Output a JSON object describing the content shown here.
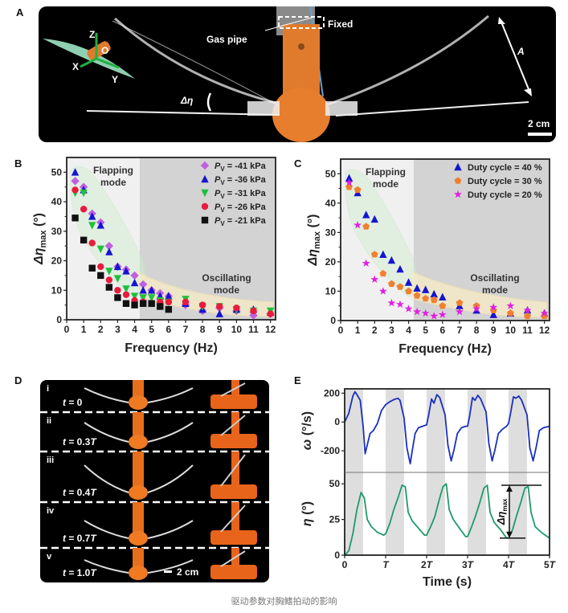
{
  "caption": "驱动参数对胸鳍拍动的影响",
  "panels": {
    "A": {
      "label": "A",
      "gas_pipe": "Gas pipe",
      "fixed": "Fixed",
      "amplitude": "A",
      "delta_eta": "Δη",
      "scale_bar": "2 cm",
      "axes": {
        "z": "Z",
        "x": "X",
        "y": "Y",
        "origin": "O"
      }
    },
    "B": {
      "label": "B"
    },
    "C": {
      "label": "C"
    },
    "D": {
      "label": "D",
      "scale_bar": "2 cm",
      "frames": [
        {
          "roman": "i",
          "time": "t = 0"
        },
        {
          "roman": "ii",
          "time": "t = 0.3T"
        },
        {
          "roman": "iii",
          "time": "t = 0.4T"
        },
        {
          "roman": "iv",
          "time": "t = 0.7T"
        },
        {
          "roman": "v",
          "time": "t = 1.0T"
        }
      ]
    },
    "E": {
      "label": "E"
    }
  },
  "chart_data": [
    {
      "id": "B",
      "type": "scatter",
      "xlabel": "Frequency (Hz)",
      "ylabel": "Δη_max (°)",
      "xlim": [
        0,
        12.3
      ],
      "ylim": [
        0,
        55
      ],
      "xticks": [
        0,
        1,
        2,
        3,
        4,
        5,
        6,
        7,
        8,
        9,
        10,
        11,
        12
      ],
      "yticks": [
        0,
        10,
        20,
        30,
        40,
        50
      ],
      "legend_position": "top-right",
      "regions": [
        {
          "label": "Flapping mode",
          "x_range": [
            0,
            4.3
          ],
          "color": "#f0f0f0"
        },
        {
          "label": "Oscillating mode",
          "x_range": [
            4.3,
            12.3
          ],
          "color": "#d3d3d3"
        }
      ],
      "annotations": [
        "Flapping mode",
        "Oscillating mode"
      ],
      "x": [
        0.5,
        1,
        1.5,
        2,
        2.5,
        3,
        3.5,
        4,
        4.5,
        5,
        5.5,
        6,
        7,
        8,
        9,
        10,
        11,
        12
      ],
      "series": [
        {
          "name": "Pv = -41 kPa",
          "marker": "diamond",
          "color": "#c060e0",
          "values": [
            47,
            45,
            36,
            33,
            25,
            18,
            17,
            15,
            12,
            10,
            9,
            8,
            5,
            3,
            4,
            3,
            1.5,
            2
          ]
        },
        {
          "name": "Pv = -36 kPa",
          "marker": "triangle-up",
          "color": "#1515d0",
          "values": [
            50,
            44,
            35,
            32,
            23,
            18,
            16.5,
            12.5,
            10,
            10,
            8,
            8,
            5.5,
            3.5,
            2,
            3.5,
            3.5,
            2.5
          ]
        },
        {
          "name": "Pv = -31 kPa",
          "marker": "triangle-down",
          "color": "#20c040",
          "values": [
            43,
            43,
            32,
            24,
            16.5,
            14,
            10.5,
            8,
            7.5,
            7.5,
            6.5,
            6,
            7,
            4.5,
            4.5,
            3.5,
            3,
            3
          ]
        },
        {
          "name": "Pv = -26 kPa",
          "marker": "circle",
          "color": "#e81c3c",
          "values": [
            44,
            37.5,
            26,
            18,
            13.5,
            10,
            8.5,
            6.5,
            6,
            5.5,
            6,
            6,
            6,
            5,
            4.5,
            4,
            3,
            2
          ]
        },
        {
          "name": "Pv = -21 kPa",
          "marker": "square",
          "color": "#111111",
          "values": [
            34.5,
            27,
            17.5,
            15,
            11,
            7.5,
            5.5,
            5,
            5.5,
            5.5,
            4.5,
            3.5,
            null,
            null,
            null,
            null,
            null,
            null
          ]
        }
      ]
    },
    {
      "id": "C",
      "type": "scatter",
      "xlabel": "Frequency (Hz)",
      "ylabel": "Δη_max (°)",
      "xlim": [
        0,
        12.3
      ],
      "ylim": [
        0,
        55
      ],
      "xticks": [
        0,
        1,
        2,
        3,
        4,
        5,
        6,
        7,
        8,
        9,
        10,
        11,
        12
      ],
      "yticks": [
        0,
        10,
        20,
        30,
        40,
        50
      ],
      "legend_position": "top-right",
      "regions": [
        {
          "label": "Flapping mode",
          "x_range": [
            0,
            4.3
          ],
          "color": "#f0f0f0"
        },
        {
          "label": "Oscillating mode",
          "x_range": [
            4.3,
            12.3
          ],
          "color": "#d3d3d3"
        }
      ],
      "annotations": [
        "Flapping mode",
        "Oscillating mode"
      ],
      "x": [
        0.5,
        1,
        1.5,
        2,
        2.5,
        3,
        3.5,
        4,
        4.5,
        5,
        5.5,
        6,
        7,
        8,
        9,
        10,
        11,
        12
      ],
      "series": [
        {
          "name": "Duty cycle = 40 %",
          "marker": "triangle-up",
          "color": "#1515d0",
          "values": [
            48.5,
            43.5,
            36,
            34.5,
            22.5,
            20.5,
            17.5,
            13,
            11,
            10.5,
            9,
            8,
            5,
            3.5,
            2,
            2.5,
            3.5,
            2.5
          ]
        },
        {
          "name": "Duty cycle = 30 %",
          "marker": "pentagon",
          "color": "#f08030",
          "values": [
            45.5,
            44.5,
            32,
            22.5,
            16,
            12.5,
            11.5,
            10,
            8.5,
            7.5,
            7,
            5,
            6,
            5,
            3.5,
            2.5,
            1.5,
            1.5
          ]
        },
        {
          "name": "Duty cycle = 20 %",
          "marker": "star",
          "color": "#e020e0",
          "values": [
            47,
            32.5,
            19.5,
            14,
            10,
            6,
            5.5,
            4,
            3,
            2.5,
            1.5,
            2,
            3,
            4,
            4.5,
            5,
            3.5,
            2.5
          ]
        }
      ]
    },
    {
      "id": "E",
      "type": "line",
      "xlabel": "Time (s)",
      "xticks": [
        "0",
        "T",
        "2T",
        "3T",
        "4T",
        "5T"
      ],
      "xlim": [
        0,
        5
      ],
      "shaded_bands_T": [
        [
          0,
          0.45
        ],
        [
          1,
          1.45
        ],
        [
          2,
          2.45
        ],
        [
          3,
          3.45
        ],
        [
          4,
          4.45
        ]
      ],
      "subplots": [
        {
          "ylabel": "ω (°/s)",
          "ylim": [
            -350,
            230
          ],
          "yticks": [
            -200,
            0,
            200
          ],
          "color": "#1a2fc0",
          "t": [
            0,
            0.1,
            0.2,
            0.25,
            0.3,
            0.38,
            0.45,
            0.5,
            0.55,
            0.62,
            0.7,
            0.8,
            0.9,
            1.0,
            1.1,
            1.2,
            1.3,
            1.35,
            1.45,
            1.52,
            1.6,
            1.65,
            1.72,
            1.8,
            1.9,
            2.0,
            2.05,
            2.12,
            2.18,
            2.25,
            2.32,
            2.45,
            2.52,
            2.6,
            2.67,
            2.75,
            2.85,
            2.95,
            3.0,
            3.05,
            3.12,
            3.18,
            3.25,
            3.32,
            3.45,
            3.52,
            3.6,
            3.67,
            3.75,
            3.85,
            3.95,
            4.0,
            4.05,
            4.12,
            4.18,
            4.25,
            4.32,
            4.45,
            4.52,
            4.6,
            4.67,
            4.75,
            4.85,
            5.0
          ],
          "values": [
            0,
            60,
            180,
            210,
            190,
            150,
            -30,
            -220,
            -160,
            -80,
            -60,
            -10,
            80,
            120,
            140,
            155,
            165,
            150,
            30,
            -180,
            -290,
            -200,
            -80,
            -40,
            -30,
            -20,
            50,
            160,
            130,
            190,
            170,
            50,
            -160,
            -270,
            -190,
            -80,
            -40,
            -30,
            -30,
            40,
            170,
            150,
            185,
            160,
            70,
            -150,
            -270,
            -190,
            -80,
            -50,
            -30,
            -10,
            60,
            175,
            165,
            180,
            150,
            50,
            -180,
            -270,
            -180,
            -60,
            -40,
            -30
          ]
        },
        {
          "ylabel": "η (°)",
          "ylim": [
            0,
            58
          ],
          "yticks": [
            0,
            25,
            50
          ],
          "color": "#1f9a6a",
          "t": [
            0,
            0.1,
            0.2,
            0.3,
            0.4,
            0.48,
            0.55,
            0.65,
            0.8,
            0.95,
            1.0,
            1.1,
            1.2,
            1.3,
            1.4,
            1.48,
            1.55,
            1.65,
            1.8,
            1.95,
            2.0,
            2.1,
            2.2,
            2.3,
            2.4,
            2.48,
            2.55,
            2.65,
            2.8,
            2.95,
            3.0,
            3.1,
            3.2,
            3.3,
            3.4,
            3.48,
            3.55,
            3.65,
            3.8,
            3.95,
            4.0,
            4.1,
            4.2,
            4.3,
            4.4,
            4.48,
            4.55,
            4.65,
            4.8,
            5.0
          ],
          "values": [
            0,
            3,
            15,
            32,
            44,
            40,
            25,
            20,
            16,
            14,
            15,
            22,
            32,
            40,
            49,
            48,
            30,
            24,
            19,
            14,
            14,
            20,
            27,
            38,
            48,
            50,
            32,
            25,
            19,
            13,
            13,
            20,
            28,
            37,
            47,
            49,
            30,
            23,
            18,
            12,
            12,
            18,
            28,
            37,
            47,
            48,
            30,
            20,
            16,
            12
          ]
        }
      ],
      "annotation": "Δη_max"
    }
  ]
}
